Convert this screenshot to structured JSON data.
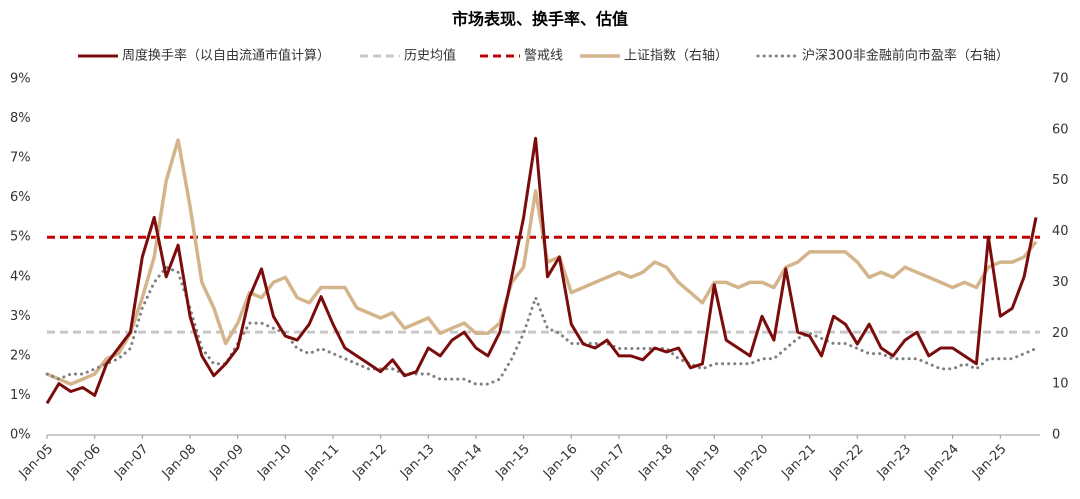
{
  "chart_data": {
    "type": "line",
    "title": "市场表现、换手率、估值",
    "x": [
      "2005-01",
      "2005-04",
      "2005-07",
      "2005-10",
      "2006-01",
      "2006-04",
      "2006-07",
      "2006-10",
      "2007-01",
      "2007-04",
      "2007-07",
      "2007-10",
      "2008-01",
      "2008-04",
      "2008-07",
      "2008-10",
      "2009-01",
      "2009-04",
      "2009-07",
      "2009-10",
      "2010-01",
      "2010-04",
      "2010-07",
      "2010-10",
      "2011-01",
      "2011-04",
      "2011-07",
      "2011-10",
      "2012-01",
      "2012-04",
      "2012-07",
      "2012-10",
      "2013-01",
      "2013-04",
      "2013-07",
      "2013-10",
      "2014-01",
      "2014-04",
      "2014-07",
      "2014-10",
      "2015-01",
      "2015-04",
      "2015-07",
      "2015-10",
      "2016-01",
      "2016-04",
      "2016-07",
      "2016-10",
      "2017-01",
      "2017-04",
      "2017-07",
      "2017-10",
      "2018-01",
      "2018-04",
      "2018-07",
      "2018-10",
      "2019-01",
      "2019-04",
      "2019-07",
      "2019-10",
      "2020-01",
      "2020-04",
      "2020-07",
      "2020-10",
      "2021-01",
      "2021-04",
      "2021-07",
      "2021-10",
      "2022-01",
      "2022-04",
      "2022-07",
      "2022-10",
      "2023-01",
      "2023-04",
      "2023-07",
      "2023-10",
      "2024-01",
      "2024-04",
      "2024-07",
      "2024-10",
      "2025-01",
      "2025-04",
      "2025-07",
      "2025-10"
    ],
    "xlim": [
      "2005-01",
      "2025-11"
    ],
    "xticks": [
      {
        "value": "2005-01",
        "label": "Jan-05"
      },
      {
        "value": "2006-01",
        "label": "Jan-06"
      },
      {
        "value": "2007-01",
        "label": "Jan-07"
      },
      {
        "value": "2008-01",
        "label": "Jan-08"
      },
      {
        "value": "2009-01",
        "label": "Jan-09"
      },
      {
        "value": "2010-01",
        "label": "Jan-10"
      },
      {
        "value": "2011-01",
        "label": "Jan-11"
      },
      {
        "value": "2012-01",
        "label": "Jan-12"
      },
      {
        "value": "2013-01",
        "label": "Jan-13"
      },
      {
        "value": "2014-01",
        "label": "Jan-14"
      },
      {
        "value": "2015-01",
        "label": "Jan-15"
      },
      {
        "value": "2016-01",
        "label": "Jan-16"
      },
      {
        "value": "2017-01",
        "label": "Jan-17"
      },
      {
        "value": "2018-01",
        "label": "Jan-18"
      },
      {
        "value": "2019-01",
        "label": "Jan-19"
      },
      {
        "value": "2020-01",
        "label": "Jan-20"
      },
      {
        "value": "2021-01",
        "label": "Jan-21"
      },
      {
        "value": "2022-01",
        "label": "Jan-22"
      },
      {
        "value": "2023-01",
        "label": "Jan-23"
      },
      {
        "value": "2024-01",
        "label": "Jan-24"
      },
      {
        "value": "2025-01",
        "label": "Jan-25"
      }
    ],
    "ylim": [
      0,
      9
    ],
    "yticks": [
      {
        "value": 0,
        "label": "0%"
      },
      {
        "value": 1,
        "label": "1%"
      },
      {
        "value": 2,
        "label": "2%"
      },
      {
        "value": 3,
        "label": "3%"
      },
      {
        "value": 4,
        "label": "4%"
      },
      {
        "value": 5,
        "label": "5%"
      },
      {
        "value": 6,
        "label": "6%"
      },
      {
        "value": 7,
        "label": "7%"
      },
      {
        "value": 8,
        "label": "8%"
      },
      {
        "value": 9,
        "label": "9%"
      }
    ],
    "y2lim": [
      0,
      70
    ],
    "y2ticks": [
      0,
      10,
      20,
      30,
      40,
      50,
      60,
      70
    ],
    "series": [
      {
        "name": "周度换手率（以自由流通市值计算）",
        "color": "#7b0c0c",
        "style": "solid",
        "width": 3,
        "values": [
          0.8,
          1.3,
          1.1,
          1.2,
          1.0,
          1.8,
          2.2,
          2.6,
          4.5,
          5.5,
          4.0,
          4.8,
          3.0,
          2.0,
          1.5,
          1.8,
          2.2,
          3.5,
          4.2,
          3.0,
          2.5,
          2.4,
          2.8,
          3.5,
          2.8,
          2.2,
          2.0,
          1.8,
          1.6,
          1.9,
          1.5,
          1.6,
          2.2,
          2.0,
          2.4,
          2.6,
          2.2,
          2.0,
          2.6,
          4.0,
          5.5,
          7.5,
          4.0,
          4.5,
          2.8,
          2.3,
          2.2,
          2.4,
          2.0,
          2.0,
          1.9,
          2.2,
          2.1,
          2.2,
          1.7,
          1.8,
          3.8,
          2.4,
          2.2,
          2.0,
          3.0,
          2.4,
          4.2,
          2.6,
          2.5,
          2.0,
          3.0,
          2.8,
          2.3,
          2.8,
          2.2,
          2.0,
          2.4,
          2.6,
          2.0,
          2.2,
          2.2,
          2.0,
          1.8,
          5.0,
          3.0,
          3.2,
          4.0,
          5.5
        ]
      },
      {
        "name": "历史均值",
        "color": "#c8c8c8",
        "style": "dashed",
        "width": 3,
        "value": 2.6
      },
      {
        "name": "警戒线",
        "color": "#c00000",
        "style": "dashed",
        "width": 3,
        "value": 5
      },
      {
        "name": "上证指数（右轴）",
        "color": "#d4b48a",
        "style": "solid",
        "width": 3.5,
        "axis": "y2",
        "values": [
          12,
          11,
          10,
          11,
          12,
          15,
          16,
          20,
          27,
          35,
          50,
          58,
          45,
          30,
          25,
          18,
          22,
          28,
          27,
          30,
          31,
          27,
          26,
          29,
          29,
          29,
          25,
          24,
          23,
          24,
          21,
          22,
          23,
          20,
          21,
          22,
          20,
          20,
          22,
          30,
          33,
          48,
          34,
          35,
          28,
          29,
          30,
          31,
          32,
          31,
          32,
          34,
          33,
          30,
          28,
          26,
          30,
          30,
          29,
          30,
          30,
          29,
          33,
          34,
          36,
          36,
          36,
          36,
          34,
          31,
          32,
          31,
          33,
          32,
          31,
          30,
          29,
          30,
          29,
          33,
          34,
          34,
          35,
          38
        ]
      },
      {
        "name": "沪深300非金融前向市盈率（右轴）",
        "color": "#7f7f7f",
        "style": "dotted",
        "width": 3,
        "axis": "y2",
        "values": [
          12,
          11,
          12,
          12,
          13,
          14,
          15,
          17,
          25,
          30,
          33,
          32,
          25,
          17,
          14,
          14,
          18,
          22,
          22,
          21,
          20,
          17,
          16,
          17,
          16,
          15,
          14,
          13,
          13,
          13,
          12,
          12,
          12,
          11,
          11,
          11,
          10,
          10,
          11,
          15,
          20,
          27,
          21,
          20,
          18,
          18,
          18,
          18,
          17,
          17,
          17,
          17,
          17,
          15,
          14,
          13,
          14,
          14,
          14,
          14,
          15,
          15,
          17,
          19,
          20,
          19,
          18,
          18,
          17,
          16,
          16,
          15,
          15,
          15,
          14,
          13,
          13,
          14,
          13,
          15,
          15,
          15,
          16,
          17
        ]
      }
    ]
  }
}
